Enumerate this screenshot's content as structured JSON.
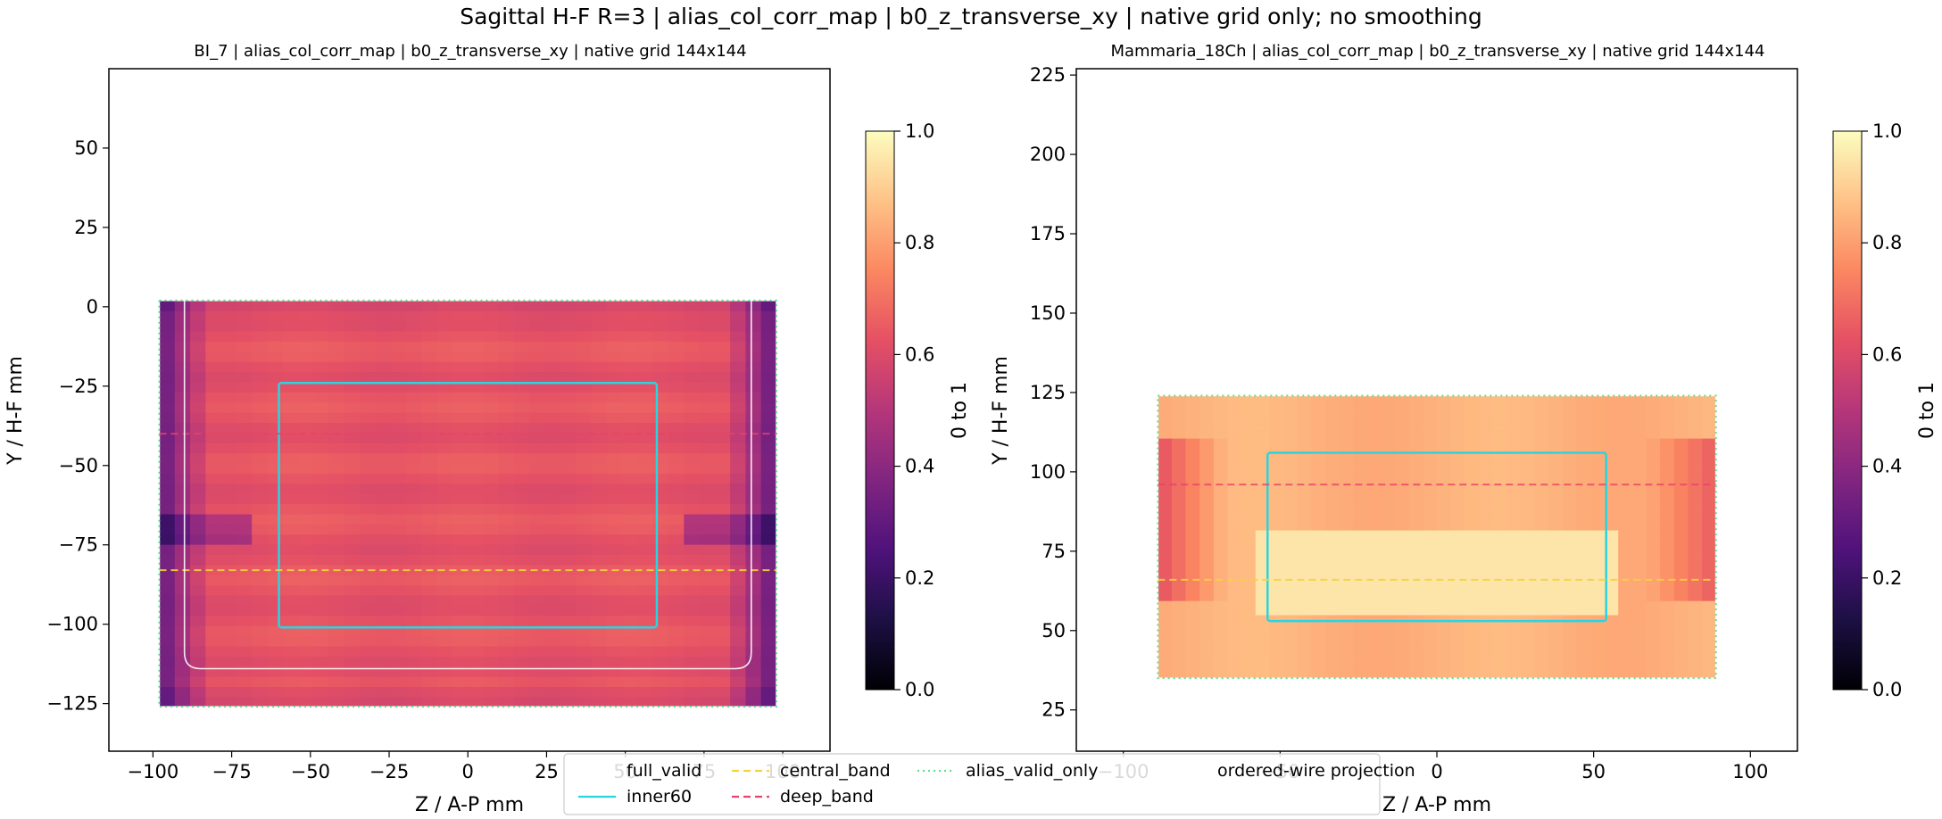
{
  "figure": {
    "suptitle": "Sagittal H-F R=3 | alias_col_corr_map | b0_z_transverse_xy | native grid only; no smoothing"
  },
  "chart_data": [
    {
      "type": "heatmap",
      "title": "BI_7 | alias_col_corr_map | b0_z_transverse_xy | native grid 144x144",
      "xlabel": "Z / A-P mm",
      "ylabel": "Y / H-F mm",
      "xlim": [
        -114,
        115
      ],
      "ylim": [
        -140,
        75
      ],
      "xticks": [
        -100,
        -75,
        -50,
        -25,
        0,
        25,
        50,
        75,
        100
      ],
      "yticks": [
        -125,
        -100,
        -75,
        -50,
        -25,
        0,
        25,
        50
      ],
      "grid": false,
      "colorbar": {
        "label": "0 to 1",
        "range": [
          0,
          1
        ],
        "ticks": [
          0.0,
          0.2,
          0.4,
          0.6,
          0.8,
          1.0
        ],
        "colormap": "magma"
      },
      "data_extent": {
        "x": [
          -98,
          98
        ],
        "y": [
          -126,
          2
        ]
      },
      "typical_value": 0.63,
      "edge_value": 0.3,
      "overlays": {
        "full_valid": {
          "x": [
            -98,
            98
          ],
          "y": [
            -126,
            2
          ]
        },
        "alias_valid_only": {
          "x": [
            -98,
            98
          ],
          "y": [
            -126,
            2
          ]
        },
        "inner60": {
          "x": [
            -60,
            60
          ],
          "y": [
            -101,
            -24
          ]
        },
        "central_band_y": -83,
        "deep_band_y": -40,
        "wire_outline": {
          "x": [
            -90,
            90
          ],
          "y": [
            -114,
            2
          ]
        }
      }
    },
    {
      "type": "heatmap",
      "title": "Mammaria_18Ch | alias_col_corr_map | b0_z_transverse_xy | native grid 144x144",
      "xlabel": "Z / A-P mm",
      "ylabel": "Y / H-F mm",
      "xlim": [
        -115,
        115
      ],
      "ylim": [
        12,
        227
      ],
      "xticks": [
        -100,
        -50,
        0,
        50,
        100
      ],
      "yticks": [
        25,
        50,
        75,
        100,
        125,
        150,
        175,
        200,
        225
      ],
      "grid": false,
      "colorbar": {
        "label": "0 to 1",
        "range": [
          0,
          1
        ],
        "ticks": [
          0.0,
          0.2,
          0.4,
          0.6,
          0.8,
          1.0
        ],
        "colormap": "magma"
      },
      "data_extent": {
        "x": [
          -89,
          89
        ],
        "y": [
          35,
          124
        ]
      },
      "typical_value": 0.84,
      "bright_value": 0.95,
      "overlays": {
        "full_valid": {
          "x": [
            -89,
            89
          ],
          "y": [
            35,
            124
          ]
        },
        "alias_valid_only": {
          "x": [
            -89,
            89
          ],
          "y": [
            35,
            124
          ]
        },
        "inner60": {
          "x": [
            -54,
            54
          ],
          "y": [
            53,
            106
          ]
        },
        "central_band_y": 66,
        "deep_band_y": 96
      }
    }
  ],
  "legend": {
    "placement": "bottom-center",
    "items": [
      {
        "label": "full_valid",
        "style": "solid",
        "color": "#ffffff"
      },
      {
        "label": "central_band",
        "style": "dashed",
        "color": "#f5d33b"
      },
      {
        "label": "alias_valid_only",
        "style": "dotted",
        "color": "#5be38c"
      },
      {
        "label": "ordered-wire projection",
        "style": "solid",
        "color": "#ffffff"
      },
      {
        "label": "inner60",
        "style": "solid",
        "color": "#2ad4e0"
      },
      {
        "label": "deep_band",
        "style": "dashed",
        "color": "#e8436a"
      }
    ]
  }
}
